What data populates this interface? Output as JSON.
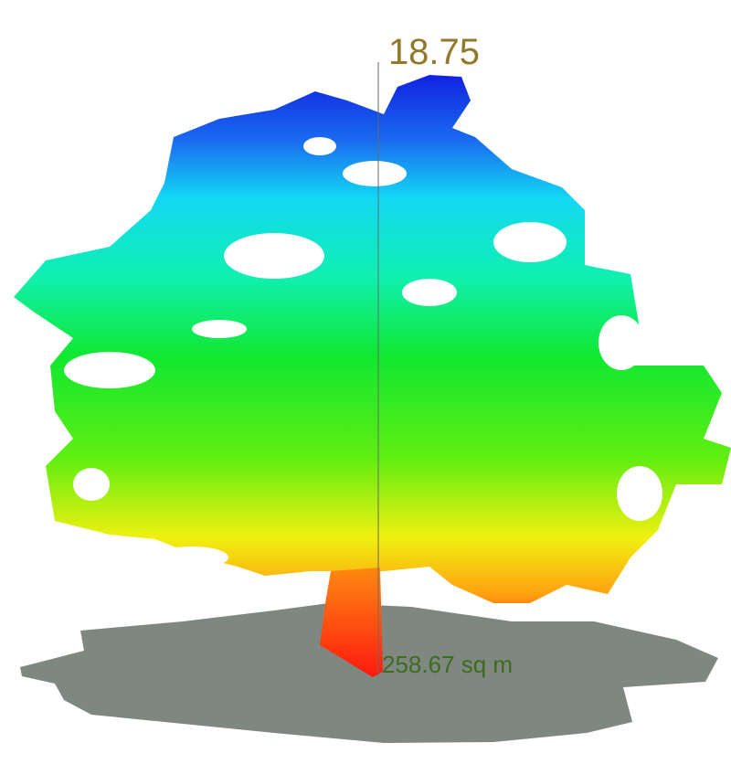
{
  "labels": {
    "height": "18.75",
    "area": "258.67 sq m"
  }
}
